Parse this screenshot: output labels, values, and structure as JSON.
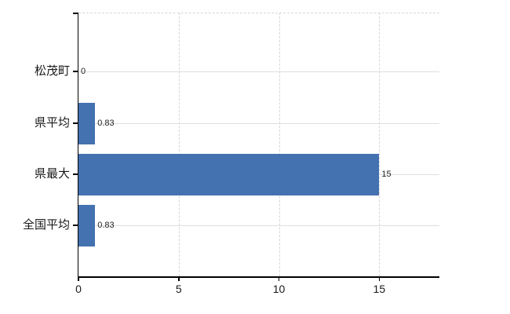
{
  "chart_data": {
    "type": "bar",
    "orientation": "horizontal",
    "title": "",
    "categories": [
      "松茂町",
      "県平均",
      "県最大",
      "全国平均"
    ],
    "values": [
      0,
      0.83,
      15,
      0.83
    ],
    "value_labels": [
      "0",
      "0.83",
      "15",
      "0.83"
    ],
    "x_ticks": [
      0,
      5,
      10,
      15
    ],
    "x_tick_labels": [
      "0",
      "5",
      "10",
      "15"
    ],
    "xlim": [
      0,
      18
    ],
    "bar_color": "#4471b0",
    "axis_color": "#000000",
    "h_grid_color": "#dbe1db",
    "v_grid_color": "#d9d4d9",
    "grid": true,
    "legend": null
  }
}
